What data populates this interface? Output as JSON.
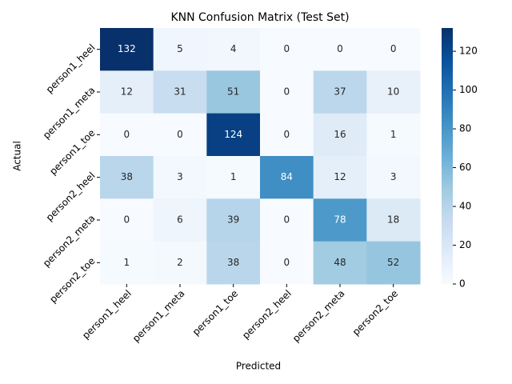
{
  "chart_data": {
    "type": "heatmap",
    "title": "KNN Confusion Matrix (Test Set)",
    "x_label": "Predicted",
    "y_label": "Actual",
    "columns": [
      "person1_heel",
      "person1_meta",
      "person1_toe",
      "person2_heel",
      "person2_meta",
      "person2_toe"
    ],
    "rows": [
      "person1_heel",
      "person1_meta",
      "person1_toe",
      "person2_heel",
      "person2_meta",
      "person2_toe"
    ],
    "values": [
      [
        132,
        5,
        4,
        0,
        0,
        0
      ],
      [
        12,
        31,
        51,
        0,
        37,
        10
      ],
      [
        0,
        0,
        124,
        0,
        16,
        1
      ],
      [
        38,
        3,
        1,
        84,
        12,
        3
      ],
      [
        0,
        6,
        39,
        0,
        78,
        18
      ],
      [
        1,
        2,
        38,
        0,
        48,
        52
      ]
    ],
    "colormap": "Blues",
    "colorbar_lim": [
      0,
      132
    ],
    "colorbar_ticks": [
      0,
      20,
      40,
      60,
      80,
      100,
      120
    ]
  }
}
